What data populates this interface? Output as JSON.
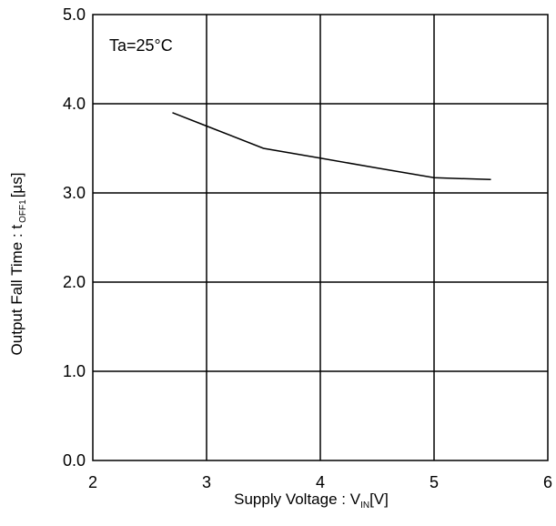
{
  "chart_data": {
    "type": "line",
    "title": "",
    "annotation": "Ta=25°C",
    "xlabel": {
      "main": "Supply Voltage : V",
      "sub": "IN",
      "unit": "[V]"
    },
    "ylabel": {
      "main": "Output Fall Time : t",
      "sub": "OFF1",
      "unit": "[µs]"
    },
    "xlim": [
      2,
      6
    ],
    "ylim": [
      0,
      5
    ],
    "x_ticks": [
      2,
      3,
      4,
      5,
      6
    ],
    "x_tick_labels": [
      "2",
      "3",
      "4",
      "5",
      "6"
    ],
    "y_ticks": [
      0,
      1,
      2,
      3,
      4,
      5
    ],
    "y_tick_labels": [
      "0.0",
      "1.0",
      "2.0",
      "3.0",
      "4.0",
      "5.0"
    ],
    "grid": true,
    "series": [
      {
        "x": [
          2.7,
          3.0,
          3.5,
          4.0,
          4.5,
          5.0,
          5.5
        ],
        "y": [
          3.9,
          3.75,
          3.5,
          3.39,
          3.28,
          3.17,
          3.15
        ]
      }
    ],
    "colors": {
      "line": "#000000",
      "grid": "#000000",
      "background": "#ffffff"
    }
  }
}
